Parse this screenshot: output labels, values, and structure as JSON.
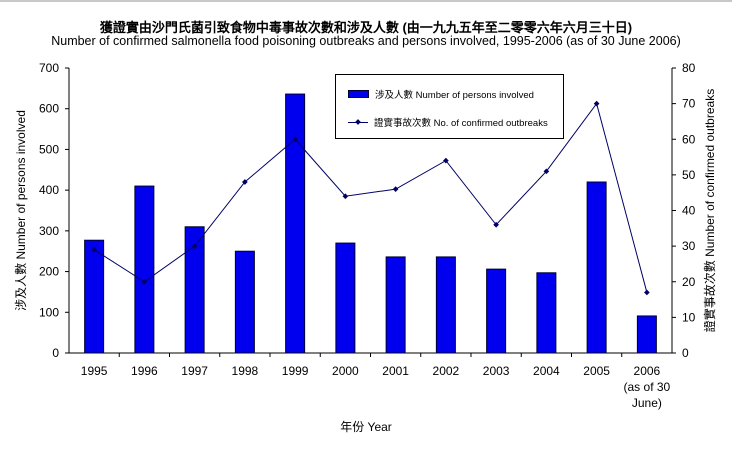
{
  "title_zh": "獲證實由沙門氏菌引致食物中毒事故次數和涉及人數 (由一九九五年至二零零六年六月三十日)",
  "title_en": "Number of confirmed salmonella food poisoning outbreaks and persons involved, 1995-2006 (as of 30 June 2006)",
  "legend": {
    "bar_label": "涉及人數 Number of persons involved",
    "line_label": "證實事故次數 No. of confirmed outbreaks"
  },
  "axes": {
    "x_label": "年份 Year",
    "y_left_label": "涉及人數 Number of persons involved",
    "y_right_label": "證實事故次數 Number of confirmed outbreaks",
    "y_left_ticks": [
      "0",
      "100",
      "200",
      "300",
      "400",
      "500",
      "600",
      "700"
    ],
    "y_right_ticks": [
      "0",
      "10",
      "20",
      "30",
      "40",
      "50",
      "60",
      "70",
      "80"
    ]
  },
  "colors": {
    "bar": "#0000EE",
    "bar_border": "#000033",
    "line": "#000066"
  },
  "chart_data": {
    "type": "bar",
    "title": "Number of confirmed salmonella food poisoning outbreaks and persons involved, 1995-2006 (as of 30 June 2006)",
    "xlabel": "年份 Year",
    "categories": [
      "1995",
      "1996",
      "1997",
      "1998",
      "1999",
      "2000",
      "2001",
      "2002",
      "2003",
      "2004",
      "2005",
      "2006 (as of 30 June)"
    ],
    "series": [
      {
        "name": "涉及人數 Number of persons involved",
        "type": "bar",
        "axis": "left",
        "values": [
          277,
          410,
          310,
          250,
          636,
          270,
          236,
          236,
          206,
          197,
          420,
          91
        ]
      },
      {
        "name": "證實事故次數 No. of confirmed outbreaks",
        "type": "line",
        "axis": "right",
        "values": [
          29,
          20,
          30,
          48,
          60,
          44,
          46,
          54,
          36,
          51,
          70,
          17
        ]
      }
    ],
    "ylabel": "涉及人數 Number of persons involved",
    "ylim": [
      0,
      700
    ],
    "y2label": "證實事故次數 Number of confirmed outbreaks",
    "y2lim": [
      0,
      80
    ],
    "grid": false,
    "legend_position": "top-center-inside"
  }
}
